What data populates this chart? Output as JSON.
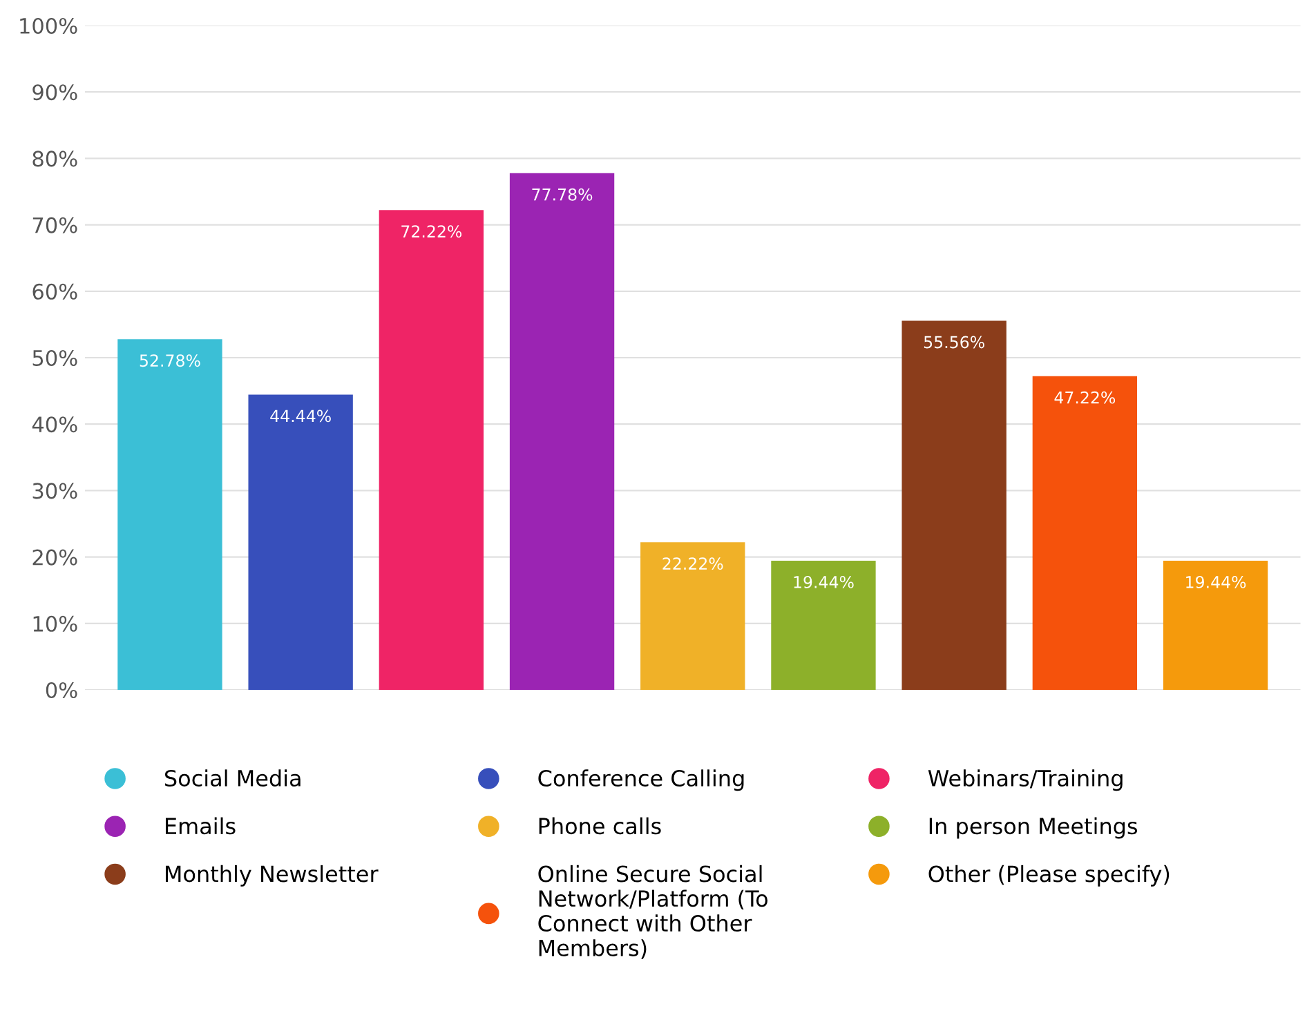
{
  "chart_data": {
    "type": "bar",
    "categories": [
      null,
      null,
      null,
      null,
      null,
      null,
      null,
      null,
      null
    ],
    "series": [
      {
        "name": "Social Media",
        "color": "#3bbfd6",
        "values": [
          52.78,
          null,
          null,
          null,
          null,
          null,
          null,
          null,
          null
        ]
      },
      {
        "name": "Conference Calling",
        "color": "#374fbb",
        "values": [
          null,
          44.44,
          null,
          null,
          null,
          null,
          null,
          null,
          null
        ]
      },
      {
        "name": "Webinars/Training",
        "color": "#ef2466",
        "values": [
          null,
          null,
          72.22,
          null,
          null,
          null,
          null,
          null,
          null
        ]
      },
      {
        "name": "Emails",
        "color": "#9b24b3",
        "values": [
          null,
          null,
          null,
          77.78,
          null,
          null,
          null,
          null,
          null
        ]
      },
      {
        "name": "Phone calls",
        "color": "#f0b128",
        "values": [
          null,
          null,
          null,
          null,
          22.22,
          null,
          null,
          null,
          null
        ]
      },
      {
        "name": "In person Meetings",
        "color": "#8db02a",
        "values": [
          null,
          null,
          null,
          null,
          null,
          19.44,
          null,
          null,
          null
        ]
      },
      {
        "name": "Monthly Newsletter",
        "color": "#8b3d1b",
        "values": [
          null,
          null,
          null,
          null,
          null,
          null,
          55.56,
          null,
          null
        ]
      },
      {
        "name": "Online Secure Social\nNetwork/Platform (To\nConnect with Other\nMembers)",
        "color": "#f5520c",
        "values": [
          null,
          null,
          null,
          null,
          null,
          null,
          null,
          47.22,
          null
        ]
      },
      {
        "name": "Other (Please specify)",
        "color": "#f59a0c",
        "values": [
          null,
          null,
          null,
          null,
          null,
          null,
          null,
          null,
          19.44
        ]
      }
    ],
    "value_labels": [
      "52.78%",
      "44.44%",
      "72.22%",
      "77.78%",
      "22.22%",
      "19.44%",
      "55.56%",
      "47.22%",
      "19.44%"
    ],
    "ylim": [
      0,
      100
    ],
    "yticks": [
      {
        "value": 0,
        "label": "0%"
      },
      {
        "value": 10,
        "label": "10%"
      },
      {
        "value": 20,
        "label": "20%"
      },
      {
        "value": 30,
        "label": "30%"
      },
      {
        "value": 40,
        "label": "40%"
      },
      {
        "value": 50,
        "label": "50%"
      },
      {
        "value": 60,
        "label": "60%"
      },
      {
        "value": 70,
        "label": "70%"
      },
      {
        "value": 80,
        "label": "80%"
      },
      {
        "value": 90,
        "label": "90%"
      },
      {
        "value": 100,
        "label": "100%"
      }
    ],
    "grid": "y",
    "legend": "bottom",
    "marker": "circle"
  }
}
